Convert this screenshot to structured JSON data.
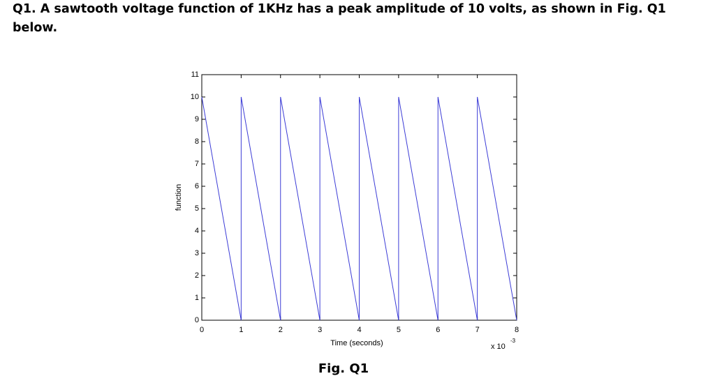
{
  "question": "Q1. A sawtooth voltage function of 1KHz has a peak amplitude of 10 volts, as shown in Fig. Q1 below.",
  "chart_data": {
    "type": "line",
    "x_label": "Time (seconds)",
    "y_label": "function",
    "x_multiplier": {
      "base": "x 10",
      "exponent": "-3"
    },
    "x": [
      0,
      1,
      1,
      2,
      2,
      3,
      3,
      4,
      4,
      5,
      5,
      6,
      6,
      7,
      7,
      8
    ],
    "series": [
      {
        "color": "#3b3bd6",
        "values": [
          10,
          0,
          10,
          0,
          10,
          0,
          10,
          0,
          10,
          0,
          10,
          0,
          10,
          0,
          10,
          0
        ]
      }
    ],
    "xlim": [
      0,
      8
    ],
    "xticks": [
      0,
      1,
      2,
      3,
      4,
      5,
      6,
      7,
      8
    ],
    "ylim": [
      0,
      11
    ],
    "yticks": [
      0,
      1,
      2,
      3,
      4,
      5,
      6,
      7,
      8,
      9,
      10,
      11
    ]
  },
  "figure_caption": "Fig. Q1"
}
